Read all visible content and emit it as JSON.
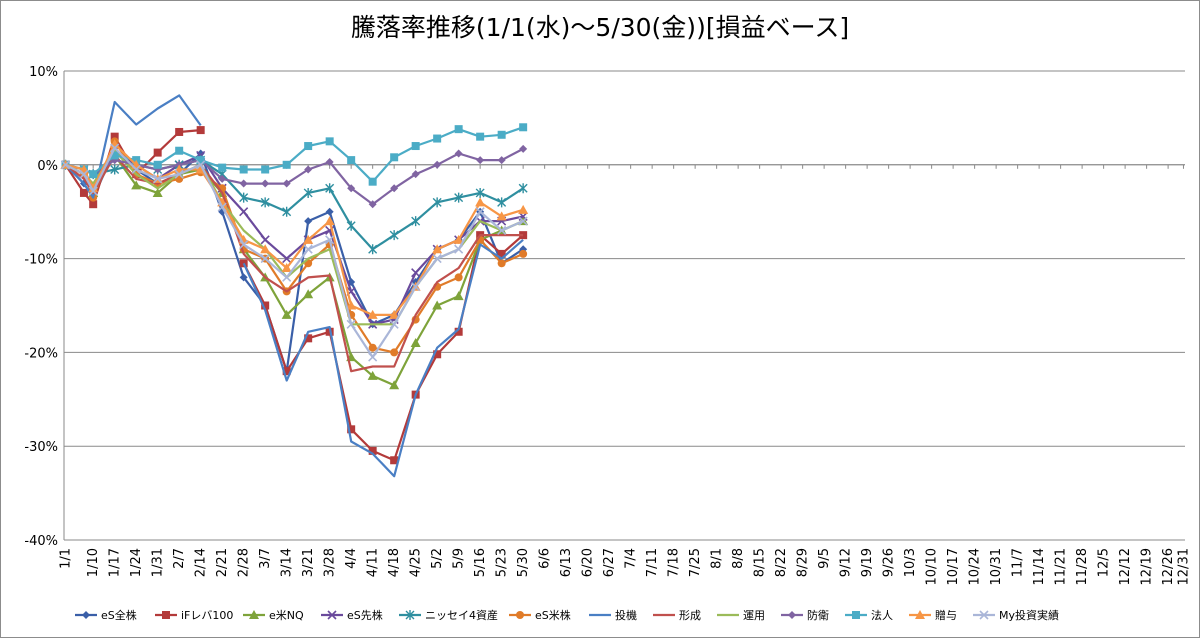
{
  "chart_data": {
    "type": "line",
    "title": "騰落率推移(1/1(水)～5/30(金))[損益ベース]",
    "xlabel": "",
    "ylabel": "",
    "ylim": [
      -40,
      10
    ],
    "y_ticks": [
      10,
      0,
      -10,
      -20,
      -30,
      -40
    ],
    "y_tick_labels": [
      "10%",
      "0%",
      "-10%",
      "-20%",
      "-30%",
      "-40%"
    ],
    "x_tick_labels": [
      "1/1",
      "1/10",
      "1/17",
      "1/24",
      "1/31",
      "2/7",
      "2/14",
      "2/21",
      "2/28",
      "3/7",
      "3/14",
      "3/21",
      "3/28",
      "4/4",
      "4/11",
      "4/18",
      "4/25",
      "5/2",
      "5/9",
      "5/16",
      "5/23",
      "5/30",
      "6/6",
      "6/13",
      "6/20",
      "6/27",
      "7/4",
      "7/11",
      "7/18",
      "7/25",
      "8/1",
      "8/8",
      "8/15",
      "8/22",
      "8/29",
      "9/5",
      "9/12",
      "9/19",
      "9/26",
      "10/3",
      "10/10",
      "10/17",
      "10/24",
      "10/31",
      "11/7",
      "11/14",
      "11/21",
      "11/28",
      "12/5",
      "12/12",
      "12/19",
      "12/26",
      "12/31"
    ],
    "grid": "horizontal",
    "legend_position": "bottom",
    "dates": [
      "1/1",
      "1/7",
      "1/10",
      "1/17",
      "1/24",
      "1/31",
      "2/7",
      "2/14",
      "2/21",
      "2/28",
      "3/7",
      "3/14",
      "3/21",
      "3/28",
      "4/4",
      "4/11",
      "4/18",
      "4/25",
      "5/2",
      "5/9",
      "5/16",
      "5/23",
      "5/30"
    ],
    "series": [
      {
        "name": "eS全株",
        "color": "#3a5fa8",
        "marker": "diamond",
        "values": [
          0,
          -2,
          -3.5,
          1.5,
          -0.5,
          -2,
          -1,
          1.2,
          -5,
          -12,
          -15,
          -22,
          -6,
          -5,
          -12.5,
          -17,
          -16,
          -12.5,
          -9,
          -8,
          -5,
          -10.5,
          -9
        ]
      },
      {
        "name": "iFレバ100",
        "color": "#b33a3a",
        "marker": "square",
        "values": [
          0,
          -3,
          -4.2,
          3,
          -1,
          1.3,
          3.5,
          3.7,
          null,
          -10.5,
          -15,
          -22,
          -18.5,
          -17.8,
          -28.2,
          -30.5,
          -31.5,
          -24.5,
          -20.2,
          -17.8,
          -7.5,
          -9.5,
          -7.5
        ]
      },
      {
        "name": "e米NQ",
        "color": "#7ea33a",
        "marker": "triangle",
        "values": [
          0,
          -0.5,
          -3,
          1,
          -2.2,
          -3,
          -1,
          -0.5,
          -3,
          -9,
          -12,
          -16,
          -13.8,
          -12,
          -20.5,
          -22.5,
          -23.5,
          -19,
          -15,
          -14,
          -8,
          -7,
          -6
        ]
      },
      {
        "name": "eS先株",
        "color": "#6a4a9c",
        "marker": "x",
        "values": [
          0,
          -1,
          -2.5,
          1.5,
          0,
          -1.5,
          0,
          1,
          -2.5,
          -5,
          -8,
          -10,
          -8,
          -7,
          -13.5,
          -17,
          -16.5,
          -11.5,
          -9,
          -8,
          -6,
          -6,
          -5.5
        ]
      },
      {
        "name": "ニッセイ4資産",
        "color": "#2f8fa0",
        "marker": "star",
        "values": [
          0,
          -0.5,
          -1,
          -0.5,
          0,
          -0.5,
          0,
          0.5,
          -1,
          -3.5,
          -4,
          -5,
          -3,
          -2.5,
          -6.5,
          -9,
          -7.5,
          -6,
          -4,
          -3.5,
          -3,
          -4,
          -2.5
        ]
      },
      {
        "name": "eS米株",
        "color": "#e07b29",
        "marker": "circle",
        "values": [
          0,
          -1,
          -3.5,
          2.5,
          -1,
          -2,
          -1.5,
          -0.8,
          -2.5,
          -9,
          -10,
          -13.5,
          -10.5,
          -8.5,
          -16,
          -19.5,
          -20,
          -16.5,
          -13,
          -12,
          -8,
          -10.5,
          -9.5
        ]
      },
      {
        "name": "投機",
        "color": "#4a7fc4",
        "marker": "none",
        "values": [
          0,
          -2,
          -3.5,
          6.7,
          4.3,
          6,
          7.4,
          4.2,
          null,
          -10.5,
          -15.5,
          -23,
          -17.8,
          -17.3,
          -29.5,
          -30.8,
          -33.2,
          -24.5,
          -19.5,
          -17.5,
          -8.5,
          -10,
          -8
        ]
      },
      {
        "name": "形成",
        "color": "#c0504d",
        "marker": "none",
        "values": [
          0,
          -1.5,
          -3,
          1,
          -1.5,
          -2,
          -1,
          0,
          -3,
          -9.5,
          -12,
          -13.5,
          -12,
          -11.8,
          -22,
          -21.5,
          -21.5,
          -16,
          -12.5,
          -11,
          -7.5,
          -7.5,
          -7.5
        ]
      },
      {
        "name": "運用",
        "color": "#9bbb59",
        "marker": "none",
        "values": [
          0,
          -1,
          -2,
          1.5,
          -1,
          -2.5,
          -1,
          0,
          -4,
          -7,
          -9,
          -12,
          -10,
          -9,
          -17,
          -17,
          -17,
          -13,
          -10,
          -9,
          -6,
          -7,
          -6
        ]
      },
      {
        "name": "防衛",
        "color": "#8064a2",
        "marker": "diamond",
        "values": [
          0,
          -0.5,
          -1,
          0.5,
          0,
          -0.5,
          0,
          0.5,
          -1.5,
          -2,
          -2,
          -2,
          -0.5,
          0.3,
          -2.5,
          -4.2,
          -2.5,
          -1,
          0,
          1.2,
          0.5,
          0.5,
          1.7
        ]
      },
      {
        "name": "法人",
        "color": "#4bacc6",
        "marker": "square",
        "values": [
          0,
          -0.5,
          -1,
          1,
          0.5,
          0,
          1.5,
          0.5,
          -0.3,
          -0.5,
          -0.5,
          0,
          2,
          2.5,
          0.5,
          -1.8,
          0.8,
          2,
          2.8,
          3.8,
          3,
          3.2,
          4
        ]
      },
      {
        "name": "贈与",
        "color": "#f79646",
        "marker": "triangle",
        "values": [
          0,
          -0.5,
          -2.5,
          2.2,
          0,
          -1.5,
          -0.5,
          -0.5,
          -4,
          -8,
          -9,
          -11,
          -8,
          -6,
          -15,
          -16,
          -16,
          -13,
          -9,
          -8,
          -4,
          -5.5,
          -4.8
        ]
      },
      {
        "name": "My投資実績",
        "color": "#aab6d8",
        "marker": "x",
        "values": [
          0,
          -1,
          -2.8,
          1.8,
          -0.5,
          -1.5,
          -1,
          0,
          -4.5,
          -8.5,
          -10,
          -12,
          -9,
          -8,
          -17,
          -20.5,
          -17,
          -13,
          -10,
          -9,
          -5,
          -7,
          -6
        ]
      }
    ]
  }
}
